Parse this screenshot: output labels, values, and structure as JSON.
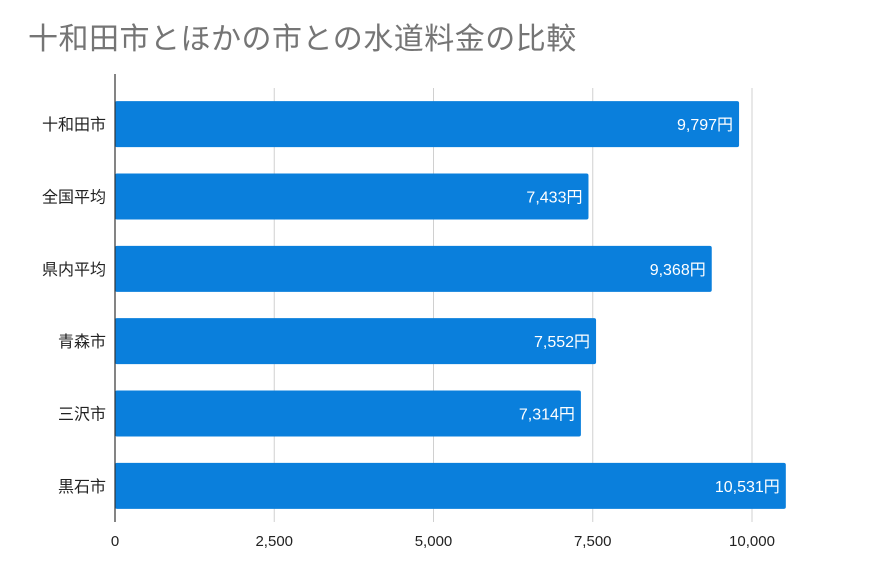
{
  "chart_data": {
    "type": "bar",
    "orientation": "horizontal",
    "title": "十和田市とほかの市との水道料金の比較",
    "categories": [
      "十和田市",
      "全国平均",
      "県内平均",
      "青森市",
      "三沢市",
      "黒石市"
    ],
    "values": [
      9797,
      7433,
      9368,
      7552,
      7314,
      10531
    ],
    "data_labels": [
      "9,797円",
      "7,433円",
      "9,368円",
      "7,552円",
      "7,314円",
      "10,531円"
    ],
    "xlim": [
      0,
      10000
    ],
    "x_ticks": [
      0,
      2500,
      5000,
      7500,
      10000
    ],
    "x_tick_labels": [
      "0",
      "2,500",
      "5,000",
      "7,500",
      "10,000"
    ],
    "grid": true,
    "bar_color": "#0a7fdc",
    "grid_color": "#d0d0d0"
  }
}
